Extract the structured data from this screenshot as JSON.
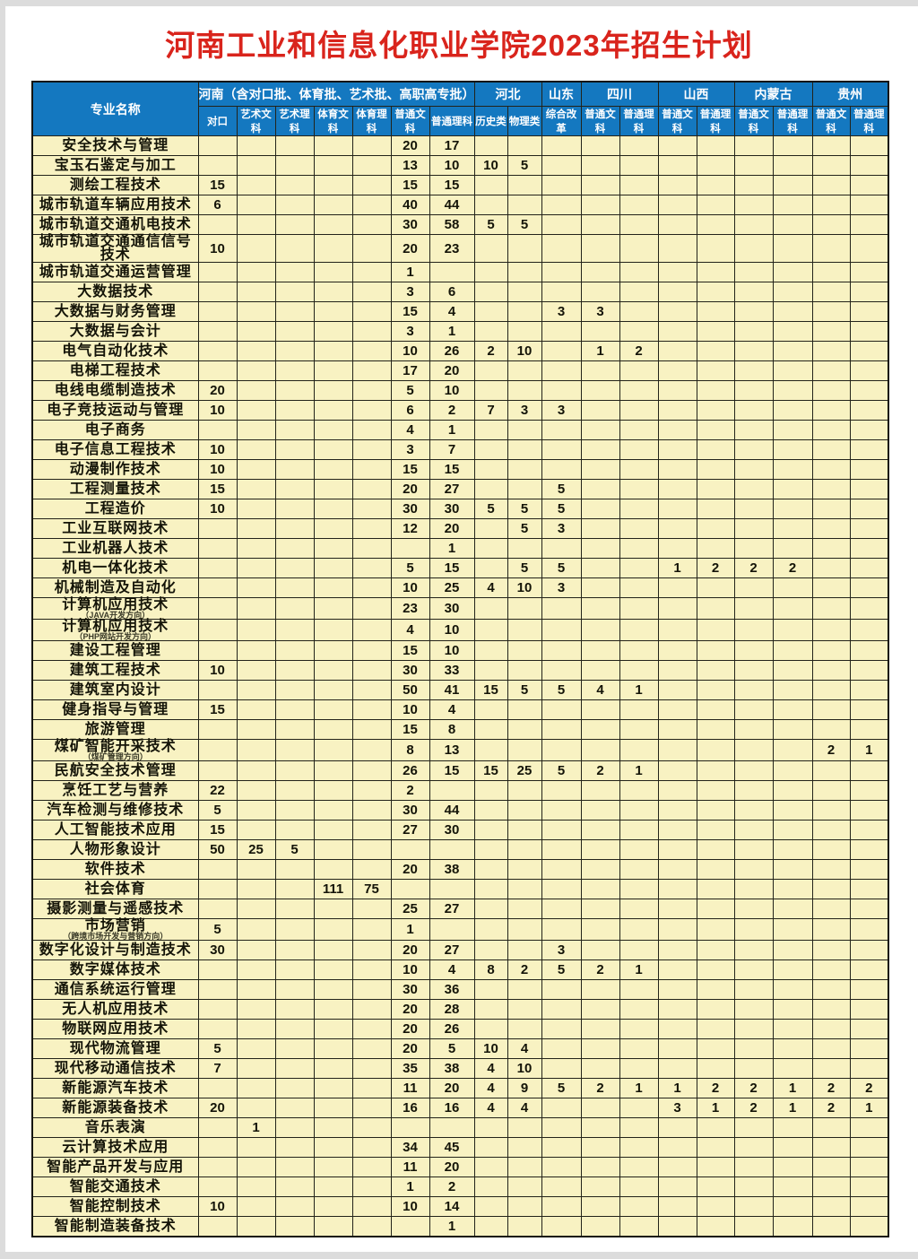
{
  "page": {
    "title": "河南工业和信息化职业学院2023年招生计划"
  },
  "table": {
    "corner_label": "专业名称",
    "groups": [
      {
        "label": "河南（含对口批、体育批、艺术批、高职高专批）",
        "span": 7
      },
      {
        "label": "河北",
        "span": 2
      },
      {
        "label": "山东",
        "span": 1
      },
      {
        "label": "四川",
        "span": 2
      },
      {
        "label": "山西",
        "span": 2
      },
      {
        "label": "内蒙古",
        "span": 2
      },
      {
        "label": "贵州",
        "span": 2
      }
    ],
    "subheaders": [
      "对口",
      "艺术文科",
      "艺术理科",
      "体育文科",
      "体育理科",
      "普通文科",
      "普通理科",
      "历史类",
      "物理类",
      "综合改革",
      "普通文科",
      "普通理科",
      "普通文科",
      "普通理科",
      "普通文科",
      "普通理科",
      "普通文科",
      "普通理科"
    ],
    "rows": [
      {
        "name": "安全技术与管理",
        "values": [
          "",
          "",
          "",
          "",
          "",
          "20",
          "17",
          "",
          "",
          "",
          "",
          "",
          "",
          "",
          "",
          "",
          "",
          ""
        ]
      },
      {
        "name": "宝玉石鉴定与加工",
        "values": [
          "",
          "",
          "",
          "",
          "",
          "13",
          "10",
          "10",
          "5",
          "",
          "",
          "",
          "",
          "",
          "",
          "",
          "",
          ""
        ]
      },
      {
        "name": "测绘工程技术",
        "values": [
          "15",
          "",
          "",
          "",
          "",
          "15",
          "15",
          "",
          "",
          "",
          "",
          "",
          "",
          "",
          "",
          "",
          "",
          ""
        ]
      },
      {
        "name": "城市轨道车辆应用技术",
        "values": [
          "6",
          "",
          "",
          "",
          "",
          "40",
          "44",
          "",
          "",
          "",
          "",
          "",
          "",
          "",
          "",
          "",
          "",
          ""
        ]
      },
      {
        "name": "城市轨道交通机电技术",
        "values": [
          "",
          "",
          "",
          "",
          "",
          "30",
          "58",
          "5",
          "5",
          "",
          "",
          "",
          "",
          "",
          "",
          "",
          "",
          ""
        ]
      },
      {
        "name": "城市轨道交通通信信号技术",
        "values": [
          "10",
          "",
          "",
          "",
          "",
          "20",
          "23",
          "",
          "",
          "",
          "",
          "",
          "",
          "",
          "",
          "",
          "",
          ""
        ]
      },
      {
        "name": "城市轨道交通运营管理",
        "values": [
          "",
          "",
          "",
          "",
          "",
          "1",
          "",
          "",
          "",
          "",
          "",
          "",
          "",
          "",
          "",
          "",
          "",
          ""
        ]
      },
      {
        "name": "大数据技术",
        "values": [
          "",
          "",
          "",
          "",
          "",
          "3",
          "6",
          "",
          "",
          "",
          "",
          "",
          "",
          "",
          "",
          "",
          "",
          ""
        ]
      },
      {
        "name": "大数据与财务管理",
        "values": [
          "",
          "",
          "",
          "",
          "",
          "15",
          "4",
          "",
          "",
          "3",
          "3",
          "",
          "",
          "",
          "",
          "",
          "",
          ""
        ]
      },
      {
        "name": "大数据与会计",
        "values": [
          "",
          "",
          "",
          "",
          "",
          "3",
          "1",
          "",
          "",
          "",
          "",
          "",
          "",
          "",
          "",
          "",
          "",
          ""
        ]
      },
      {
        "name": "电气自动化技术",
        "values": [
          "",
          "",
          "",
          "",
          "",
          "10",
          "26",
          "2",
          "10",
          "",
          "1",
          "2",
          "",
          "",
          "",
          "",
          "",
          ""
        ]
      },
      {
        "name": "电梯工程技术",
        "values": [
          "",
          "",
          "",
          "",
          "",
          "17",
          "20",
          "",
          "",
          "",
          "",
          "",
          "",
          "",
          "",
          "",
          "",
          ""
        ]
      },
      {
        "name": "电线电缆制造技术",
        "values": [
          "20",
          "",
          "",
          "",
          "",
          "5",
          "10",
          "",
          "",
          "",
          "",
          "",
          "",
          "",
          "",
          "",
          "",
          ""
        ]
      },
      {
        "name": "电子竞技运动与管理",
        "values": [
          "10",
          "",
          "",
          "",
          "",
          "6",
          "2",
          "7",
          "3",
          "3",
          "",
          "",
          "",
          "",
          "",
          "",
          "",
          ""
        ]
      },
      {
        "name": "电子商务",
        "values": [
          "",
          "",
          "",
          "",
          "",
          "4",
          "1",
          "",
          "",
          "",
          "",
          "",
          "",
          "",
          "",
          "",
          "",
          ""
        ]
      },
      {
        "name": "电子信息工程技术",
        "values": [
          "10",
          "",
          "",
          "",
          "",
          "3",
          "7",
          "",
          "",
          "",
          "",
          "",
          "",
          "",
          "",
          "",
          "",
          ""
        ]
      },
      {
        "name": "动漫制作技术",
        "values": [
          "10",
          "",
          "",
          "",
          "",
          "15",
          "15",
          "",
          "",
          "",
          "",
          "",
          "",
          "",
          "",
          "",
          "",
          ""
        ]
      },
      {
        "name": "工程测量技术",
        "values": [
          "15",
          "",
          "",
          "",
          "",
          "20",
          "27",
          "",
          "",
          "5",
          "",
          "",
          "",
          "",
          "",
          "",
          "",
          ""
        ]
      },
      {
        "name": "工程造价",
        "values": [
          "10",
          "",
          "",
          "",
          "",
          "30",
          "30",
          "5",
          "5",
          "5",
          "",
          "",
          "",
          "",
          "",
          "",
          "",
          ""
        ]
      },
      {
        "name": "工业互联网技术",
        "values": [
          "",
          "",
          "",
          "",
          "",
          "12",
          "20",
          "",
          "5",
          "3",
          "",
          "",
          "",
          "",
          "",
          "",
          "",
          ""
        ]
      },
      {
        "name": "工业机器人技术",
        "values": [
          "",
          "",
          "",
          "",
          "",
          "",
          "1",
          "",
          "",
          "",
          "",
          "",
          "",
          "",
          "",
          "",
          "",
          ""
        ]
      },
      {
        "name": "机电一体化技术",
        "values": [
          "",
          "",
          "",
          "",
          "",
          "5",
          "15",
          "",
          "5",
          "5",
          "",
          "",
          "1",
          "2",
          "2",
          "2",
          "",
          ""
        ]
      },
      {
        "name": "机械制造及自动化",
        "values": [
          "",
          "",
          "",
          "",
          "",
          "10",
          "25",
          "4",
          "10",
          "3",
          "",
          "",
          "",
          "",
          "",
          "",
          "",
          ""
        ]
      },
      {
        "name": "计算机应用技术",
        "sub": "（JAVA开发方向）",
        "values": [
          "",
          "",
          "",
          "",
          "",
          "23",
          "30",
          "",
          "",
          "",
          "",
          "",
          "",
          "",
          "",
          "",
          "",
          ""
        ]
      },
      {
        "name": "计算机应用技术",
        "sub": "（PHP网站开发方向）",
        "values": [
          "",
          "",
          "",
          "",
          "",
          "4",
          "10",
          "",
          "",
          "",
          "",
          "",
          "",
          "",
          "",
          "",
          "",
          ""
        ]
      },
      {
        "name": "建设工程管理",
        "values": [
          "",
          "",
          "",
          "",
          "",
          "15",
          "10",
          "",
          "",
          "",
          "",
          "",
          "",
          "",
          "",
          "",
          "",
          ""
        ]
      },
      {
        "name": "建筑工程技术",
        "values": [
          "10",
          "",
          "",
          "",
          "",
          "30",
          "33",
          "",
          "",
          "",
          "",
          "",
          "",
          "",
          "",
          "",
          "",
          ""
        ]
      },
      {
        "name": "建筑室内设计",
        "values": [
          "",
          "",
          "",
          "",
          "",
          "50",
          "41",
          "15",
          "5",
          "5",
          "4",
          "1",
          "",
          "",
          "",
          "",
          "",
          ""
        ]
      },
      {
        "name": "健身指导与管理",
        "values": [
          "15",
          "",
          "",
          "",
          "",
          "10",
          "4",
          "",
          "",
          "",
          "",
          "",
          "",
          "",
          "",
          "",
          "",
          ""
        ]
      },
      {
        "name": "旅游管理",
        "values": [
          "",
          "",
          "",
          "",
          "",
          "15",
          "8",
          "",
          "",
          "",
          "",
          "",
          "",
          "",
          "",
          "",
          "",
          ""
        ]
      },
      {
        "name": "煤矿智能开采技术",
        "sub": "（煤矿管理方向）",
        "values": [
          "",
          "",
          "",
          "",
          "",
          "8",
          "13",
          "",
          "",
          "",
          "",
          "",
          "",
          "",
          "",
          "",
          "2",
          "1"
        ]
      },
      {
        "name": "民航安全技术管理",
        "values": [
          "",
          "",
          "",
          "",
          "",
          "26",
          "15",
          "15",
          "25",
          "5",
          "2",
          "1",
          "",
          "",
          "",
          "",
          "",
          ""
        ]
      },
      {
        "name": "烹饪工艺与营养",
        "values": [
          "22",
          "",
          "",
          "",
          "",
          "2",
          "",
          "",
          "",
          "",
          "",
          "",
          "",
          "",
          "",
          "",
          "",
          ""
        ]
      },
      {
        "name": "汽车检测与维修技术",
        "values": [
          "5",
          "",
          "",
          "",
          "",
          "30",
          "44",
          "",
          "",
          "",
          "",
          "",
          "",
          "",
          "",
          "",
          "",
          ""
        ]
      },
      {
        "name": "人工智能技术应用",
        "values": [
          "15",
          "",
          "",
          "",
          "",
          "27",
          "30",
          "",
          "",
          "",
          "",
          "",
          "",
          "",
          "",
          "",
          "",
          ""
        ]
      },
      {
        "name": "人物形象设计",
        "values": [
          "50",
          "25",
          "5",
          "",
          "",
          "",
          "",
          "",
          "",
          "",
          "",
          "",
          "",
          "",
          "",
          "",
          "",
          ""
        ]
      },
      {
        "name": "软件技术",
        "values": [
          "",
          "",
          "",
          "",
          "",
          "20",
          "38",
          "",
          "",
          "",
          "",
          "",
          "",
          "",
          "",
          "",
          "",
          ""
        ]
      },
      {
        "name": "社会体育",
        "values": [
          "",
          "",
          "",
          "111",
          "75",
          "",
          "",
          "",
          "",
          "",
          "",
          "",
          "",
          "",
          "",
          "",
          "",
          ""
        ]
      },
      {
        "name": "摄影测量与遥感技术",
        "values": [
          "",
          "",
          "",
          "",
          "",
          "25",
          "27",
          "",
          "",
          "",
          "",
          "",
          "",
          "",
          "",
          "",
          "",
          ""
        ]
      },
      {
        "name": "市场营销",
        "sub": "（跨境市场开发与营销方向）",
        "values": [
          "5",
          "",
          "",
          "",
          "",
          "1",
          "",
          "",
          "",
          "",
          "",
          "",
          "",
          "",
          "",
          "",
          "",
          ""
        ]
      },
      {
        "name": "数字化设计与制造技术",
        "values": [
          "30",
          "",
          "",
          "",
          "",
          "20",
          "27",
          "",
          "",
          "3",
          "",
          "",
          "",
          "",
          "",
          "",
          "",
          ""
        ]
      },
      {
        "name": "数字媒体技术",
        "values": [
          "",
          "",
          "",
          "",
          "",
          "10",
          "4",
          "8",
          "2",
          "5",
          "2",
          "1",
          "",
          "",
          "",
          "",
          "",
          ""
        ]
      },
      {
        "name": "通信系统运行管理",
        "values": [
          "",
          "",
          "",
          "",
          "",
          "30",
          "36",
          "",
          "",
          "",
          "",
          "",
          "",
          "",
          "",
          "",
          "",
          ""
        ]
      },
      {
        "name": "无人机应用技术",
        "values": [
          "",
          "",
          "",
          "",
          "",
          "20",
          "28",
          "",
          "",
          "",
          "",
          "",
          "",
          "",
          "",
          "",
          "",
          ""
        ]
      },
      {
        "name": "物联网应用技术",
        "values": [
          "",
          "",
          "",
          "",
          "",
          "20",
          "26",
          "",
          "",
          "",
          "",
          "",
          "",
          "",
          "",
          "",
          "",
          ""
        ]
      },
      {
        "name": "现代物流管理",
        "values": [
          "5",
          "",
          "",
          "",
          "",
          "20",
          "5",
          "10",
          "4",
          "",
          "",
          "",
          "",
          "",
          "",
          "",
          "",
          ""
        ]
      },
      {
        "name": "现代移动通信技术",
        "values": [
          "7",
          "",
          "",
          "",
          "",
          "35",
          "38",
          "4",
          "10",
          "",
          "",
          "",
          "",
          "",
          "",
          "",
          "",
          ""
        ]
      },
      {
        "name": "新能源汽车技术",
        "values": [
          "",
          "",
          "",
          "",
          "",
          "11",
          "20",
          "4",
          "9",
          "5",
          "2",
          "1",
          "1",
          "2",
          "2",
          "1",
          "2",
          "2"
        ]
      },
      {
        "name": "新能源装备技术",
        "values": [
          "20",
          "",
          "",
          "",
          "",
          "16",
          "16",
          "4",
          "4",
          "",
          "",
          "",
          "3",
          "1",
          "2",
          "1",
          "2",
          "1"
        ]
      },
      {
        "name": "音乐表演",
        "values": [
          "",
          "1",
          "",
          "",
          "",
          "",
          "",
          "",
          "",
          "",
          "",
          "",
          "",
          "",
          "",
          "",
          "",
          ""
        ]
      },
      {
        "name": "云计算技术应用",
        "values": [
          "",
          "",
          "",
          "",
          "",
          "34",
          "45",
          "",
          "",
          "",
          "",
          "",
          "",
          "",
          "",
          "",
          "",
          ""
        ]
      },
      {
        "name": "智能产品开发与应用",
        "values": [
          "",
          "",
          "",
          "",
          "",
          "11",
          "20",
          "",
          "",
          "",
          "",
          "",
          "",
          "",
          "",
          "",
          "",
          ""
        ]
      },
      {
        "name": "智能交通技术",
        "values": [
          "",
          "",
          "",
          "",
          "",
          "1",
          "2",
          "",
          "",
          "",
          "",
          "",
          "",
          "",
          "",
          "",
          "",
          ""
        ]
      },
      {
        "name": "智能控制技术",
        "values": [
          "10",
          "",
          "",
          "",
          "",
          "10",
          "14",
          "",
          "",
          "",
          "",
          "",
          "",
          "",
          "",
          "",
          "",
          ""
        ]
      },
      {
        "name": "智能制造装备技术",
        "values": [
          "",
          "",
          "",
          "",
          "",
          "",
          "1",
          "",
          "",
          "",
          "",
          "",
          "",
          "",
          "",
          "",
          "",
          ""
        ]
      }
    ]
  }
}
